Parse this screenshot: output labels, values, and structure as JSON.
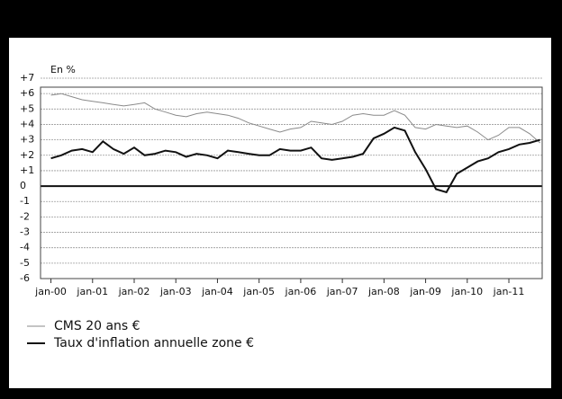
{
  "chart_data": {
    "type": "line",
    "y_label": "En %",
    "x": [
      2000,
      2000.25,
      2000.5,
      2000.75,
      2001,
      2001.25,
      2001.5,
      2001.75,
      2002,
      2002.25,
      2002.5,
      2002.75,
      2003,
      2003.25,
      2003.5,
      2003.75,
      2004,
      2004.25,
      2004.5,
      2004.75,
      2005,
      2005.25,
      2005.5,
      2005.75,
      2006,
      2006.25,
      2006.5,
      2006.75,
      2007,
      2007.25,
      2007.5,
      2007.75,
      2008,
      2008.25,
      2008.5,
      2008.75,
      2009,
      2009.25,
      2009.5,
      2009.75,
      2010,
      2010.25,
      2010.5,
      2010.75,
      2011,
      2011.25,
      2011.5,
      2011.75
    ],
    "series": [
      {
        "name": "CMS 20 ans €",
        "color": "#8a8a8a",
        "width": 1,
        "values": [
          5.9,
          6.0,
          5.8,
          5.6,
          5.5,
          5.4,
          5.3,
          5.2,
          5.3,
          5.4,
          5.0,
          4.8,
          4.6,
          4.5,
          4.7,
          4.8,
          4.7,
          4.6,
          4.4,
          4.1,
          3.9,
          3.7,
          3.5,
          3.7,
          3.8,
          4.2,
          4.1,
          4.0,
          4.2,
          4.6,
          4.7,
          4.6,
          4.6,
          4.9,
          4.6,
          3.8,
          3.7,
          4.0,
          3.9,
          3.8,
          3.9,
          3.5,
          3.0,
          3.3,
          3.8,
          3.8,
          3.4,
          2.8
        ]
      },
      {
        "name": "Taux d'inflation annuelle zone €",
        "color": "#111111",
        "width": 2,
        "values": [
          1.8,
          2.0,
          2.3,
          2.4,
          2.2,
          2.9,
          2.4,
          2.1,
          2.5,
          2.0,
          2.1,
          2.3,
          2.2,
          1.9,
          2.1,
          2.0,
          1.8,
          2.3,
          2.2,
          2.1,
          2.0,
          2.0,
          2.4,
          2.3,
          2.3,
          2.5,
          1.8,
          1.7,
          1.8,
          1.9,
          2.1,
          3.1,
          3.4,
          3.8,
          3.6,
          2.2,
          1.1,
          -0.2,
          -0.4,
          0.8,
          1.2,
          1.6,
          1.8,
          2.2,
          2.4,
          2.7,
          2.8,
          3.0
        ]
      }
    ],
    "xlim": [
      1999.75,
      2011.8
    ],
    "xticks": [
      {
        "value": 2000,
        "label": "jan-00"
      },
      {
        "value": 2001,
        "label": "jan-01"
      },
      {
        "value": 2002,
        "label": "jan-02"
      },
      {
        "value": 2003,
        "label": "jan-03"
      },
      {
        "value": 2004,
        "label": "jan-04"
      },
      {
        "value": 2005,
        "label": "jan-05"
      },
      {
        "value": 2006,
        "label": "jan-06"
      },
      {
        "value": 2007,
        "label": "jan-07"
      },
      {
        "value": 2008,
        "label": "jan-08"
      },
      {
        "value": 2009,
        "label": "jan-09"
      },
      {
        "value": 2010,
        "label": "jan-10"
      },
      {
        "value": 2011,
        "label": "jan-11"
      }
    ],
    "ylim": [
      -6,
      7
    ],
    "yticks": [
      {
        "value": 7,
        "label": "+7"
      },
      {
        "value": 6,
        "label": "+6"
      },
      {
        "value": 5,
        "label": "+5"
      },
      {
        "value": 4,
        "label": "+4"
      },
      {
        "value": 3,
        "label": "+3"
      },
      {
        "value": 2,
        "label": "+2"
      },
      {
        "value": 1,
        "label": "+1"
      },
      0,
      -1,
      -2,
      -3,
      -4,
      -5,
      -6
    ],
    "grid": true
  }
}
